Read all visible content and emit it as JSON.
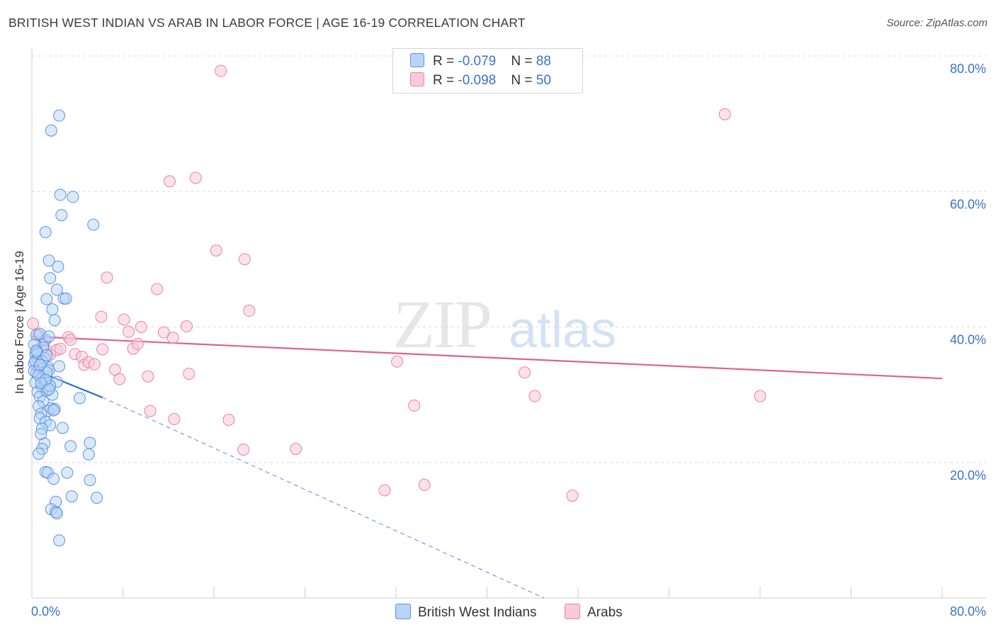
{
  "title": "BRITISH WEST INDIAN VS ARAB IN LABOR FORCE | AGE 16-19 CORRELATION CHART",
  "source": "Source: ZipAtlas.com",
  "watermark": {
    "zip": "ZIP",
    "atlas": "atlas"
  },
  "legend": {
    "series1": {
      "r_label": "R = ",
      "r_value": "-0.079",
      "n_label": "N = ",
      "n_value": "88"
    },
    "series2": {
      "r_label": "R = ",
      "r_value": "-0.098",
      "n_label": "N = ",
      "n_value": "50"
    }
  },
  "bottom_legend": {
    "series1": "British West Indians",
    "series2": "Arabs"
  },
  "colors": {
    "blue": "#5b93e0",
    "blue_fill": "#b8d3f5",
    "blue_line": "#2a6fd0",
    "pink": "#e882a6",
    "pink_fill": "#f8c9d8",
    "pink_line": "#e0618f",
    "axis_text": "#3a72c8",
    "grid": "#dcdcdc"
  },
  "chart_data": {
    "type": "scatter",
    "title": "BRITISH WEST INDIAN VS ARAB IN LABOR FORCE | AGE 16-19 CORRELATION CHART",
    "xlabel": "",
    "ylabel": "In Labor Force | Age 16-19",
    "xlim": [
      0,
      80
    ],
    "ylim": [
      0,
      80
    ],
    "x_tick_labels": [
      "0.0%",
      "80.0%"
    ],
    "y_tick_labels": [
      "20.0%",
      "40.0%",
      "60.0%",
      "80.0%"
    ],
    "y_ticks": [
      20,
      40,
      60,
      80
    ],
    "grid": true,
    "legend_position": "top-center",
    "series": [
      {
        "name": "British West Indians",
        "R": -0.079,
        "N": 88,
        "trend": {
          "x": [
            0,
            6.2
          ],
          "y": [
            33.8,
            29.6
          ],
          "dashed_extension_to": [
            45,
            0
          ]
        },
        "points": [
          [
            0.3,
            36.0
          ],
          [
            0.5,
            35.3
          ],
          [
            0.2,
            34.6
          ],
          [
            0.6,
            33.9
          ],
          [
            0.4,
            33.2
          ],
          [
            0.8,
            32.5
          ],
          [
            0.3,
            31.8
          ],
          [
            0.9,
            31.1
          ],
          [
            0.5,
            30.4
          ],
          [
            0.7,
            29.7
          ],
          [
            1.0,
            37.4
          ],
          [
            1.2,
            38.1
          ],
          [
            0.4,
            38.8
          ],
          [
            1.4,
            34.1
          ],
          [
            1.5,
            33.6
          ],
          [
            1.1,
            32.0
          ],
          [
            1.6,
            31.3
          ],
          [
            1.3,
            30.6
          ],
          [
            1.8,
            30.0
          ],
          [
            1.0,
            29.0
          ],
          [
            0.6,
            28.3
          ],
          [
            1.7,
            28.0
          ],
          [
            1.4,
            27.6
          ],
          [
            0.8,
            27.2
          ],
          [
            2.0,
            27.9
          ],
          [
            0.7,
            26.5
          ],
          [
            1.2,
            26.0
          ],
          [
            1.6,
            25.5
          ],
          [
            0.9,
            25.0
          ],
          [
            2.7,
            25.1
          ],
          [
            0.8,
            24.2
          ],
          [
            1.1,
            22.8
          ],
          [
            0.9,
            22.0
          ],
          [
            0.6,
            21.3
          ],
          [
            3.4,
            22.4
          ],
          [
            5.1,
            22.9
          ],
          [
            5.0,
            21.2
          ],
          [
            1.2,
            18.6
          ],
          [
            1.4,
            18.5
          ],
          [
            3.1,
            18.5
          ],
          [
            1.9,
            17.6
          ],
          [
            5.1,
            17.4
          ],
          [
            3.5,
            15.0
          ],
          [
            5.7,
            14.8
          ],
          [
            2.1,
            14.2
          ],
          [
            1.7,
            13.1
          ],
          [
            2.1,
            12.7
          ],
          [
            2.2,
            12.5
          ],
          [
            2.4,
            8.5
          ],
          [
            2.4,
            71.2
          ],
          [
            1.7,
            69.0
          ],
          [
            2.5,
            59.5
          ],
          [
            3.6,
            59.2
          ],
          [
            2.6,
            56.5
          ],
          [
            5.4,
            55.1
          ],
          [
            1.2,
            54.0
          ],
          [
            1.5,
            49.8
          ],
          [
            2.3,
            48.9
          ],
          [
            1.6,
            47.2
          ],
          [
            2.2,
            45.5
          ],
          [
            1.3,
            44.1
          ],
          [
            2.8,
            44.2
          ],
          [
            3.0,
            44.2
          ],
          [
            1.8,
            42.6
          ],
          [
            2.0,
            41.0
          ],
          [
            0.7,
            39.0
          ],
          [
            1.5,
            38.6
          ],
          [
            1.0,
            37.0
          ],
          [
            0.4,
            36.6
          ],
          [
            2.4,
            34.2
          ],
          [
            2.2,
            31.9
          ],
          [
            1.6,
            31.3
          ],
          [
            1.3,
            33.3
          ],
          [
            0.3,
            35.0
          ],
          [
            0.2,
            37.4
          ],
          [
            0.5,
            36.1
          ],
          [
            1.1,
            35.4
          ],
          [
            0.9,
            34.9
          ],
          [
            0.2,
            33.5
          ],
          [
            0.6,
            32.9
          ],
          [
            1.2,
            32.2
          ],
          [
            0.8,
            31.7
          ],
          [
            1.5,
            30.8
          ],
          [
            4.2,
            29.5
          ],
          [
            0.4,
            36.4
          ],
          [
            0.7,
            34.4
          ],
          [
            1.9,
            27.7
          ],
          [
            1.3,
            35.8
          ]
        ]
      },
      {
        "name": "Arabs",
        "R": -0.098,
        "N": 50,
        "trend": {
          "x": [
            0,
            80
          ],
          "y": [
            38.6,
            32.4
          ]
        },
        "points": [
          [
            0.1,
            40.5
          ],
          [
            0.6,
            38.8
          ],
          [
            1.1,
            38.0
          ],
          [
            1.3,
            36.5
          ],
          [
            1.6,
            35.9
          ],
          [
            2.2,
            36.6
          ],
          [
            2.5,
            36.8
          ],
          [
            3.2,
            38.5
          ],
          [
            3.4,
            38.1
          ],
          [
            3.8,
            36.0
          ],
          [
            4.4,
            35.6
          ],
          [
            4.6,
            34.4
          ],
          [
            5.0,
            34.8
          ],
          [
            5.5,
            34.5
          ],
          [
            6.2,
            36.7
          ],
          [
            6.6,
            47.3
          ],
          [
            6.1,
            41.5
          ],
          [
            7.3,
            33.7
          ],
          [
            7.7,
            32.3
          ],
          [
            8.1,
            41.1
          ],
          [
            8.5,
            39.3
          ],
          [
            8.9,
            36.8
          ],
          [
            9.3,
            37.5
          ],
          [
            9.6,
            40.0
          ],
          [
            10.2,
            32.7
          ],
          [
            10.4,
            27.6
          ],
          [
            11.0,
            45.6
          ],
          [
            11.6,
            39.2
          ],
          [
            12.1,
            61.5
          ],
          [
            12.4,
            38.4
          ],
          [
            12.5,
            26.4
          ],
          [
            13.6,
            40.1
          ],
          [
            13.8,
            33.1
          ],
          [
            14.4,
            62.0
          ],
          [
            16.2,
            51.3
          ],
          [
            16.6,
            77.8
          ],
          [
            17.3,
            26.3
          ],
          [
            18.6,
            21.9
          ],
          [
            18.7,
            50.0
          ],
          [
            19.1,
            42.4
          ],
          [
            23.2,
            22.0
          ],
          [
            31.0,
            15.9
          ],
          [
            32.1,
            34.9
          ],
          [
            33.6,
            28.4
          ],
          [
            34.5,
            16.7
          ],
          [
            43.3,
            33.3
          ],
          [
            44.2,
            29.8
          ],
          [
            47.5,
            15.1
          ],
          [
            60.9,
            71.4
          ],
          [
            64.0,
            29.8
          ]
        ]
      }
    ]
  }
}
